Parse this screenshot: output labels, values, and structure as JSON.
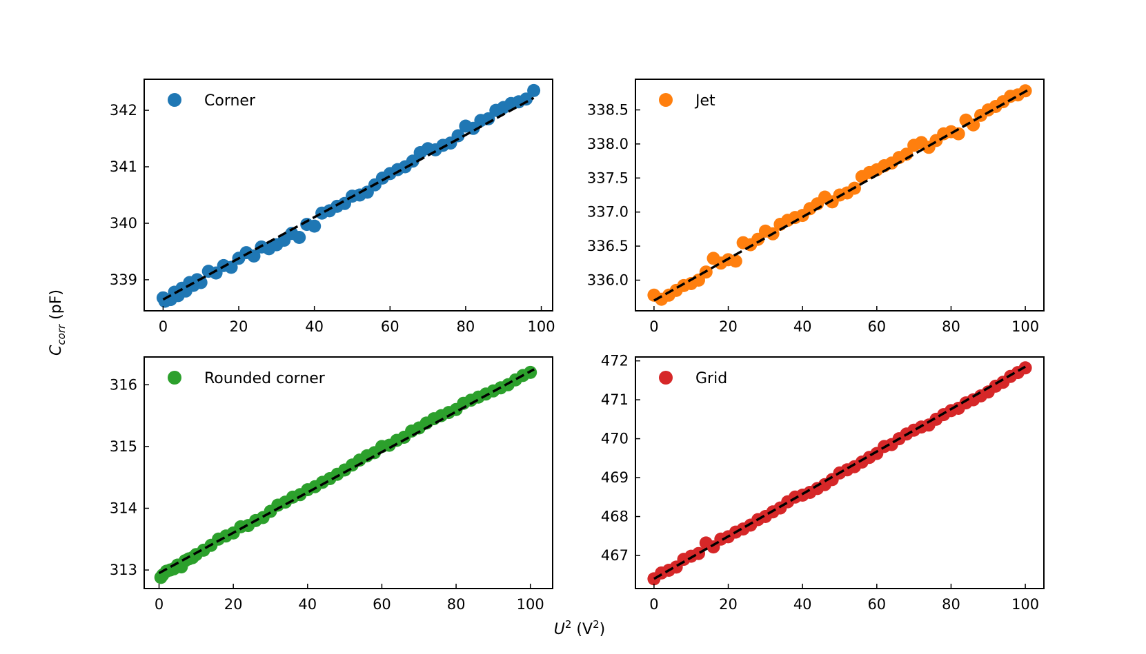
{
  "figure": {
    "ylabel_main": "C",
    "ylabel_sub": "corr",
    "ylabel_unit": " (pF)",
    "xlabel_main": "U",
    "xlabel_sup": "2",
    "xlabel_unit_open": " (V",
    "xlabel_unit_sup": "2",
    "xlabel_unit_close": ")"
  },
  "chart_data": [
    {
      "type": "scatter",
      "title": "",
      "legend": "Corner",
      "legend_position": "top-left",
      "color": "#1f77b4",
      "fit_color": "#000000",
      "xlim": [
        -5,
        103
      ],
      "ylim": [
        338.45,
        342.55
      ],
      "xticks": [
        0,
        20,
        40,
        60,
        80,
        100
      ],
      "yticks": [
        339,
        340,
        341,
        342
      ],
      "ytick_labels": [
        "339",
        "340",
        "341",
        "342"
      ],
      "fit": {
        "x": [
          0,
          98
        ],
        "y": [
          338.65,
          342.22
        ]
      },
      "x": [
        0,
        0.5,
        2,
        3,
        4,
        5,
        6,
        7,
        8,
        9,
        10,
        12,
        14,
        16,
        18,
        20,
        22,
        24,
        26,
        28,
        30,
        32,
        34,
        36,
        38,
        40,
        42,
        44,
        46,
        48,
        50,
        52,
        54,
        56,
        58,
        60,
        62,
        64,
        66,
        68,
        70,
        72,
        74,
        76,
        78,
        80,
        82,
        84,
        86,
        88,
        90,
        92,
        94,
        96,
        98
      ],
      "y": [
        338.68,
        338.62,
        338.65,
        338.78,
        338.72,
        338.85,
        338.8,
        338.95,
        338.9,
        339.0,
        338.95,
        339.15,
        339.12,
        339.25,
        339.22,
        339.38,
        339.48,
        339.42,
        339.58,
        339.55,
        339.62,
        339.7,
        339.82,
        339.75,
        339.98,
        339.95,
        340.18,
        340.22,
        340.3,
        340.35,
        340.48,
        340.5,
        340.55,
        340.68,
        340.8,
        340.88,
        340.95,
        341.0,
        341.1,
        341.25,
        341.32,
        341.3,
        341.38,
        341.42,
        341.55,
        341.72,
        341.68,
        341.82,
        341.85,
        342.0,
        342.05,
        342.12,
        342.15,
        342.2,
        342.35
      ]
    },
    {
      "type": "scatter",
      "title": "",
      "legend": "Jet",
      "legend_position": "top-left",
      "color": "#ff7f0e",
      "fit_color": "#000000",
      "xlim": [
        -5,
        105
      ],
      "ylim": [
        335.55,
        338.95
      ],
      "xticks": [
        0,
        20,
        40,
        60,
        80,
        100
      ],
      "yticks": [
        336.0,
        336.5,
        337.0,
        337.5,
        338.0,
        338.5
      ],
      "ytick_labels": [
        "336.0",
        "336.5",
        "337.0",
        "337.5",
        "338.0",
        "338.5"
      ],
      "fit": {
        "x": [
          0,
          101
        ],
        "y": [
          335.7,
          338.8
        ]
      },
      "x": [
        0,
        2,
        4,
        6,
        8,
        10,
        12,
        14,
        16,
        18,
        20,
        22,
        24,
        26,
        28,
        30,
        32,
        34,
        36,
        38,
        40,
        42,
        44,
        46,
        48,
        50,
        52,
        54,
        56,
        58,
        60,
        62,
        64,
        66,
        68,
        70,
        72,
        74,
        76,
        78,
        80,
        82,
        84,
        86,
        88,
        90,
        92,
        94,
        96,
        98,
        100
      ],
      "y": [
        335.78,
        335.72,
        335.78,
        335.85,
        335.92,
        335.95,
        336.0,
        336.12,
        336.32,
        336.25,
        336.3,
        336.28,
        336.55,
        336.52,
        336.6,
        336.72,
        336.68,
        336.82,
        336.88,
        336.92,
        336.95,
        337.05,
        337.12,
        337.22,
        337.15,
        337.25,
        337.28,
        337.35,
        337.52,
        337.58,
        337.62,
        337.68,
        337.72,
        337.8,
        337.85,
        337.98,
        338.02,
        337.95,
        338.05,
        338.15,
        338.18,
        338.15,
        338.35,
        338.28,
        338.42,
        338.5,
        338.55,
        338.62,
        338.7,
        338.72,
        338.78
      ]
    },
    {
      "type": "scatter",
      "title": "",
      "legend": "Rounded corner",
      "legend_position": "top-left",
      "color": "#2ca02c",
      "fit_color": "#000000",
      "xlim": [
        -4,
        106
      ],
      "ylim": [
        312.7,
        316.45
      ],
      "xticks": [
        0,
        20,
        40,
        60,
        80,
        100
      ],
      "yticks": [
        313,
        314,
        315,
        316
      ],
      "ytick_labels": [
        "313",
        "314",
        "315",
        "316"
      ],
      "fit": {
        "x": [
          0,
          101
        ],
        "y": [
          312.95,
          316.25
        ]
      },
      "x": [
        0.5,
        1,
        2,
        3,
        4,
        5,
        6,
        7,
        8,
        9,
        10,
        12,
        14,
        16,
        18,
        20,
        22,
        24,
        26,
        28,
        30,
        32,
        34,
        36,
        38,
        40,
        42,
        44,
        46,
        48,
        50,
        52,
        54,
        56,
        58,
        60,
        62,
        64,
        66,
        68,
        70,
        72,
        74,
        76,
        78,
        80,
        82,
        84,
        86,
        88,
        90,
        92,
        94,
        96,
        98,
        100
      ],
      "y": [
        312.88,
        312.92,
        312.98,
        313.0,
        313.02,
        313.08,
        313.05,
        313.15,
        313.18,
        313.2,
        313.25,
        313.32,
        313.4,
        313.5,
        313.55,
        313.6,
        313.7,
        313.72,
        313.8,
        313.85,
        313.95,
        314.05,
        314.1,
        314.18,
        314.22,
        314.3,
        314.35,
        314.42,
        314.48,
        314.55,
        314.62,
        314.7,
        314.78,
        314.85,
        314.9,
        315.0,
        315.02,
        315.1,
        315.15,
        315.25,
        315.3,
        315.38,
        315.45,
        315.5,
        315.55,
        315.6,
        315.7,
        315.75,
        315.8,
        315.85,
        315.9,
        315.95,
        316.0,
        316.08,
        316.15,
        316.2
      ]
    },
    {
      "type": "scatter",
      "title": "",
      "legend": "Grid",
      "legend_position": "top-left",
      "color": "#d62728",
      "fit_color": "#000000",
      "xlim": [
        -5,
        105
      ],
      "ylim": [
        466.15,
        472.1
      ],
      "xticks": [
        0,
        20,
        40,
        60,
        80,
        100
      ],
      "yticks": [
        467,
        468,
        469,
        470,
        471,
        472
      ],
      "ytick_labels": [
        "467",
        "468",
        "469",
        "470",
        "471",
        "472"
      ],
      "fit": {
        "x": [
          0,
          100
        ],
        "y": [
          466.4,
          471.85
        ]
      },
      "x": [
        0,
        2,
        4,
        6,
        8,
        10,
        12,
        14,
        16,
        18,
        20,
        22,
        24,
        26,
        28,
        30,
        32,
        34,
        36,
        38,
        40,
        42,
        44,
        46,
        48,
        50,
        52,
        54,
        56,
        58,
        60,
        62,
        64,
        66,
        68,
        70,
        72,
        74,
        76,
        78,
        80,
        82,
        84,
        86,
        88,
        90,
        92,
        94,
        96,
        98,
        100
      ],
      "y": [
        466.4,
        466.55,
        466.62,
        466.7,
        466.9,
        466.98,
        467.05,
        467.32,
        467.22,
        467.42,
        467.48,
        467.6,
        467.68,
        467.78,
        467.92,
        468.0,
        468.12,
        468.22,
        468.38,
        468.5,
        468.55,
        468.62,
        468.72,
        468.82,
        468.95,
        469.12,
        469.2,
        469.28,
        469.4,
        469.52,
        469.62,
        469.8,
        469.85,
        470.0,
        470.12,
        470.22,
        470.3,
        470.35,
        470.5,
        470.62,
        470.72,
        470.78,
        470.92,
        471.0,
        471.1,
        471.2,
        471.35,
        471.45,
        471.6,
        471.7,
        471.82
      ]
    }
  ]
}
